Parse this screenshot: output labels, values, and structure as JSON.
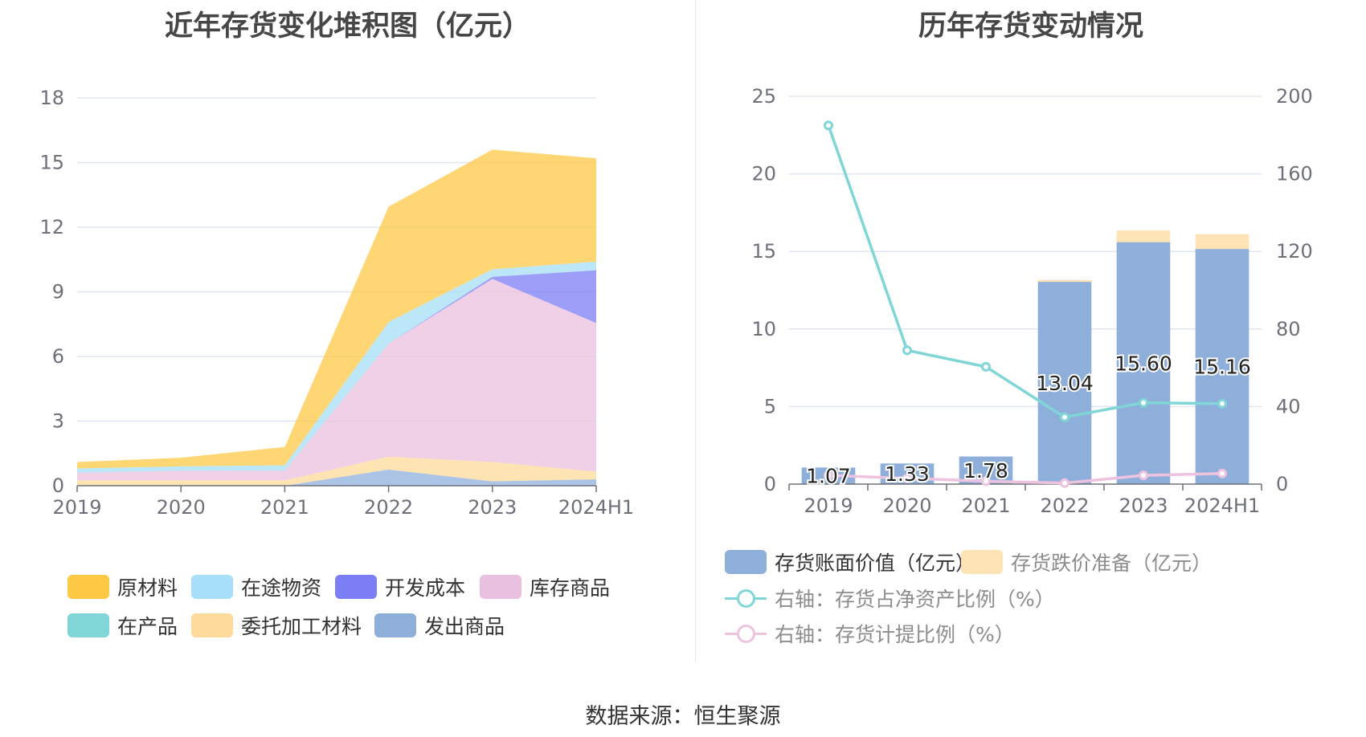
{
  "source_label": "数据来源：恒生聚源",
  "chart_data": [
    {
      "type": "area",
      "stacked": true,
      "title": "近年存货变化堆积图（亿元）",
      "categories": [
        "2019",
        "2020",
        "2021",
        "2022",
        "2023",
        "2024H1"
      ],
      "ylim": [
        0,
        18
      ],
      "yticks": [
        0,
        3,
        6,
        9,
        12,
        15,
        18
      ],
      "grid": true,
      "legend_position": "bottom",
      "series": [
        {
          "name": "发出商品",
          "color": "#8fafdb",
          "values": [
            0.0,
            0.0,
            0.0,
            0.75,
            0.2,
            0.3
          ]
        },
        {
          "name": "委托加工材料",
          "color": "#fdd99a",
          "values": [
            0.25,
            0.25,
            0.25,
            0.6,
            0.9,
            0.35
          ]
        },
        {
          "name": "在产品",
          "color": "#80d6d6",
          "values": [
            0.0,
            0.0,
            0.0,
            0.0,
            0.0,
            0.0
          ]
        },
        {
          "name": "库存商品",
          "color": "#e9c0df",
          "values": [
            0.35,
            0.45,
            0.45,
            5.25,
            8.5,
            6.9
          ]
        },
        {
          "name": "开发成本",
          "color": "#7b7ef4",
          "values": [
            0.0,
            0.0,
            0.0,
            0.0,
            0.1,
            2.45
          ]
        },
        {
          "name": "在途物资",
          "color": "#a6dff7",
          "values": [
            0.2,
            0.2,
            0.25,
            1.0,
            0.35,
            0.4
          ]
        },
        {
          "name": "原材料",
          "color": "#fdc844",
          "values": [
            0.3,
            0.4,
            0.85,
            5.35,
            5.55,
            4.8
          ]
        }
      ],
      "legend_order": [
        "原材料",
        "在途物资",
        "开发成本",
        "库存商品",
        "在产品",
        "委托加工材料",
        "发出商品"
      ]
    },
    {
      "type": "bar",
      "stacked": true,
      "title": "历年存货变动情况",
      "categories": [
        "2019",
        "2020",
        "2021",
        "2022",
        "2023",
        "2024H1"
      ],
      "ylim": [
        0,
        25
      ],
      "yticks": [
        0,
        5,
        10,
        15,
        20,
        25
      ],
      "y2lim": [
        0,
        200
      ],
      "y2ticks": [
        0,
        40,
        80,
        120,
        160,
        200
      ],
      "grid": true,
      "legend_position": "bottom",
      "series": [
        {
          "name": "存货账面价值（亿元）",
          "color": "#8fafdb",
          "axis": "left",
          "kind": "bar",
          "values": [
            1.07,
            1.33,
            1.78,
            13.04,
            15.6,
            15.16
          ],
          "labels": [
            "1.07",
            "1.33",
            "1.78",
            "13.04",
            "15.60",
            "15.16"
          ]
        },
        {
          "name": "存货跌价准备（亿元）",
          "color": "#fde3b5",
          "axis": "left",
          "kind": "bar",
          "values": [
            0.0,
            0.0,
            0.0,
            0.12,
            0.75,
            0.95
          ]
        },
        {
          "name": "右轴：存货占净资产比例（%）",
          "color": "#80d6d6",
          "axis": "right",
          "kind": "line",
          "values": [
            185.0,
            69.0,
            60.5,
            34.5,
            42.0,
            41.5
          ]
        },
        {
          "name": "右轴：存货计提比例（%）",
          "color": "#eec3df",
          "axis": "right",
          "kind": "line",
          "values": [
            4.5,
            3.0,
            1.5,
            0.5,
            4.5,
            5.5
          ]
        }
      ]
    }
  ]
}
